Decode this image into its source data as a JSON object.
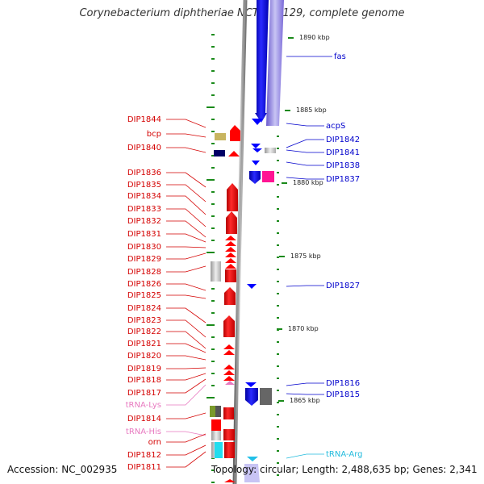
{
  "title": "Corynebacterium diphtheriae NCTC 13129, complete genome",
  "footer": {
    "accession": "Accession: NC_002935",
    "summary": "Topology: circular; Length: 2,488,635 bp; Genes: 2,341"
  },
  "colors": {
    "left_label": "#d40000",
    "right_label": "#0000cc",
    "trna_left": "#e87ac0",
    "trna_right": "#22bbdd",
    "tick": "#1a8a1a",
    "backbone": "#888888",
    "cds": "#ff0000",
    "cds_right": "#0000ff"
  },
  "scale_labels": [
    "1890 kbp",
    "1885 kbp",
    "1880 kbp",
    "1875 kbp",
    "1870 kbp",
    "1865 kbp"
  ],
  "left_labels": [
    "DIP1844",
    "bcp",
    "DIP1840",
    "DIP1836",
    "DIP1835",
    "DIP1834",
    "DIP1833",
    "DIP1832",
    "DIP1831",
    "DIP1830",
    "DIP1829",
    "DIP1828",
    "DIP1826",
    "DIP1825",
    "DIP1824",
    "DIP1823",
    "DIP1822",
    "DIP1821",
    "DIP1820",
    "DIP1819",
    "DIP1818",
    "DIP1817",
    "tRNA-Lys",
    "DIP1814",
    "tRNA-His",
    "orn",
    "DIP1812",
    "DIP1811"
  ],
  "right_labels": [
    "fas",
    "acpS",
    "DIP1842",
    "DIP1841",
    "DIP1838",
    "DIP1837",
    "DIP1827",
    "DIP1816",
    "DIP1815",
    "tRNA-Arg"
  ]
}
